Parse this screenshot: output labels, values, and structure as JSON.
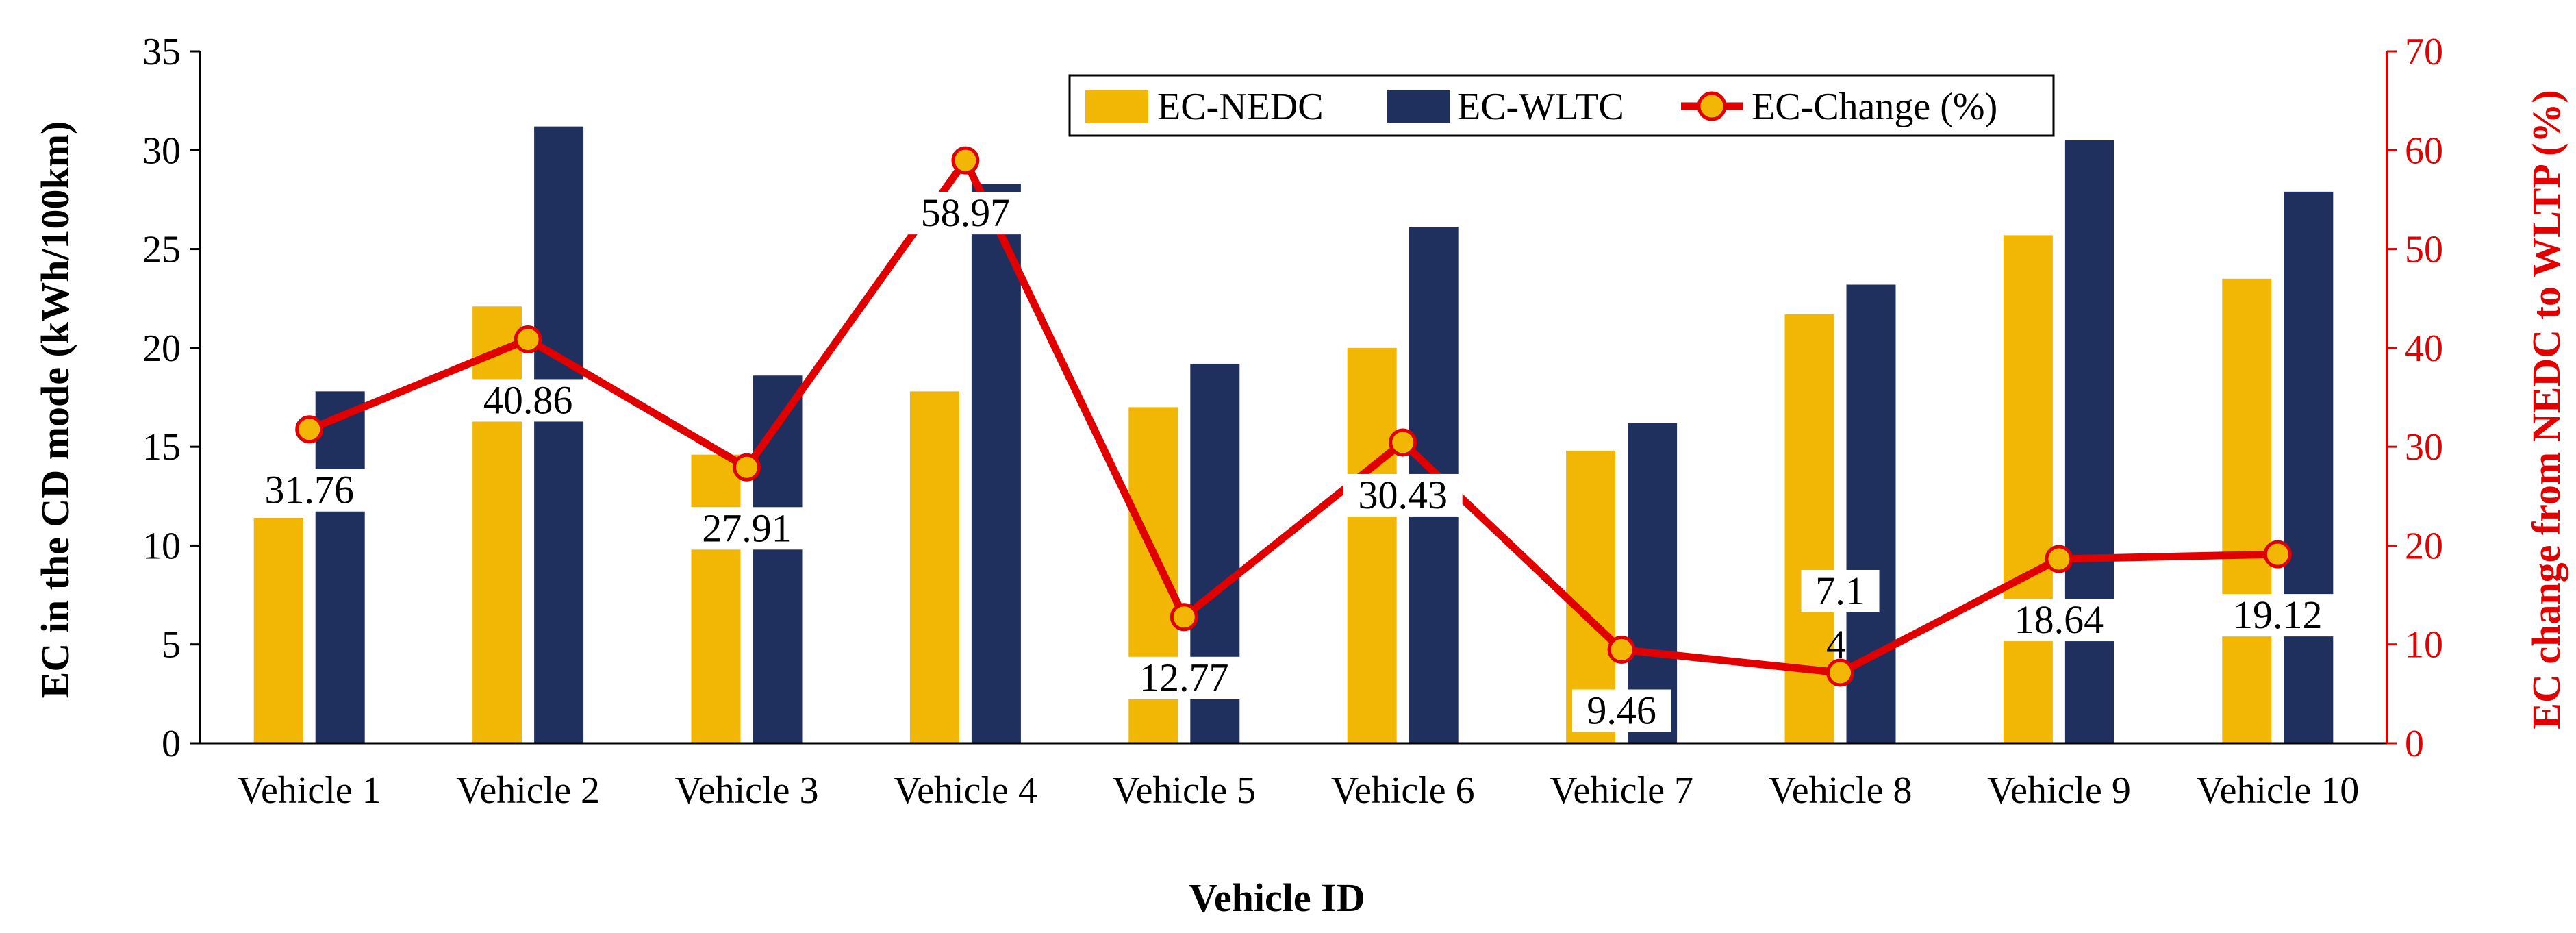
{
  "chart_data": {
    "type": "bar",
    "categories": [
      "Vehicle 1",
      "Vehicle 2",
      "Vehicle 3",
      "Vehicle 4",
      "Vehicle 5",
      "Vehicle 6",
      "Vehicle 7",
      "Vehicle 8",
      "Vehicle 9",
      "Vehicle 10"
    ],
    "series": [
      {
        "name": "EC-NEDC",
        "type": "bar",
        "axis": "left",
        "color": "#f2b705",
        "values": [
          11.4,
          22.1,
          14.6,
          17.8,
          17.0,
          20.0,
          14.8,
          21.7,
          25.7,
          23.5
        ]
      },
      {
        "name": "EC-WLTC",
        "type": "bar",
        "axis": "left",
        "color": "#1f2f5e",
        "values": [
          17.8,
          31.2,
          18.6,
          28.3,
          19.2,
          26.1,
          16.2,
          23.2,
          30.5,
          27.9
        ]
      },
      {
        "name": "EC-Change (%)",
        "type": "line",
        "axis": "right",
        "color": "#e00000",
        "marker_color": "#f2b705",
        "values": [
          31.76,
          40.86,
          27.91,
          58.97,
          12.77,
          30.43,
          9.46,
          7.14,
          18.64,
          19.12
        ]
      }
    ],
    "data_labels": [
      "31.76",
      "40.86",
      "27.91",
      "58.97",
      "12.77",
      "30.43",
      "9.46",
      "7.1",
      "18.64",
      "19.12"
    ],
    "data_labels_extra": {
      "7": "4"
    },
    "xlabel": "Vehicle ID",
    "ylabel": "EC in the CD mode (kWh/100km)",
    "y2label": "EC change from NEDC to WLTP (%)",
    "ylim": [
      0,
      35
    ],
    "y2lim": [
      0,
      70
    ],
    "yticks": [
      "0",
      "5",
      "10",
      "15",
      "20",
      "25",
      "30",
      "35"
    ],
    "y2ticks": [
      "0",
      "10",
      "20",
      "30",
      "40",
      "50",
      "60",
      "70"
    ],
    "grid": false,
    "legend_position": "top-center"
  }
}
